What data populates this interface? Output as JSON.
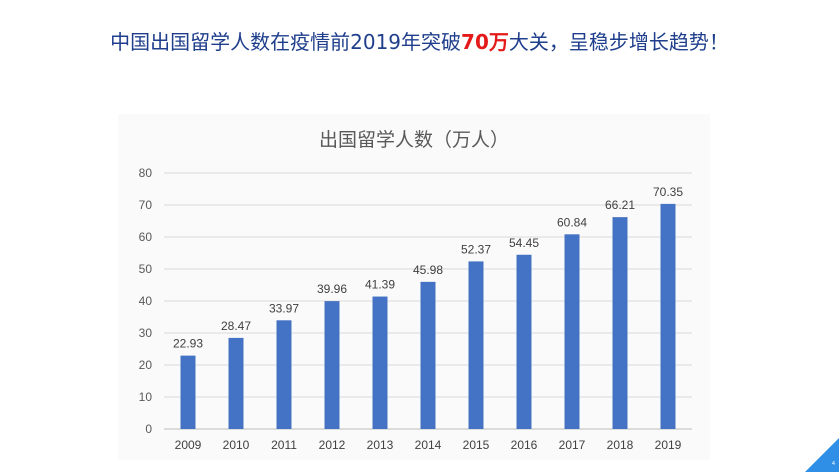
{
  "headline": {
    "prefix": "中国出国留学人数在疫情前2019年突破",
    "highlight": "70万",
    "suffix": "大关，呈稳步增长趋势！"
  },
  "colors": {
    "headline": "#1f3e8c",
    "highlight": "#e41a1a",
    "bar": "#4472c4",
    "corner": "#2f8ee5"
  },
  "slide_number": "4",
  "chart_data": {
    "type": "bar",
    "title": "出国留学人数（万人）",
    "categories": [
      "2009",
      "2010",
      "2011",
      "2012",
      "2013",
      "2014",
      "2015",
      "2016",
      "2017",
      "2018",
      "2019"
    ],
    "values": [
      22.93,
      28.47,
      33.97,
      39.96,
      41.39,
      45.98,
      52.37,
      54.45,
      60.84,
      66.21,
      70.35
    ],
    "value_labels": [
      "22.93",
      "28.47",
      "33.97",
      "39.96",
      "41.39",
      "45.98",
      "52.37",
      "54.45",
      "60.84",
      "66.21",
      "70.35"
    ],
    "ylim": [
      0,
      80
    ],
    "yticks": [
      "0",
      "10",
      "20",
      "30",
      "40",
      "50",
      "60",
      "70",
      "80"
    ],
    "grid": true,
    "xlabel": "",
    "ylabel": ""
  }
}
